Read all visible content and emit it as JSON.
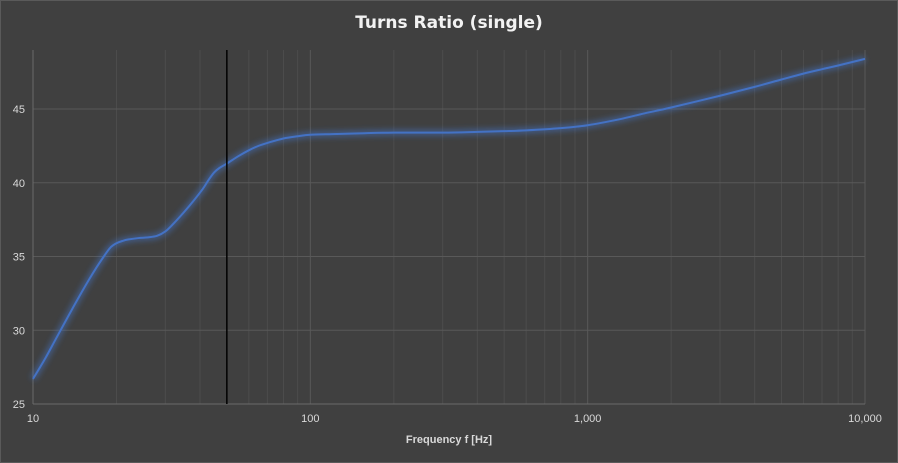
{
  "chart_data": {
    "type": "line",
    "title": "Turns Ratio (single)",
    "xlabel": "Frequency  f [Hz]",
    "ylabel": "",
    "x_scale": "log",
    "xlim": [
      10,
      10000
    ],
    "ylim": [
      25,
      49
    ],
    "x_ticks": [
      10,
      100,
      1000,
      10000
    ],
    "x_tick_labels": [
      "10",
      "100",
      "1,000",
      "10,000"
    ],
    "y_ticks": [
      25,
      30,
      35,
      40,
      45
    ],
    "y_tick_labels": [
      "25",
      "30",
      "35",
      "40",
      "45"
    ],
    "grid": true,
    "minor_grid": true,
    "marker_line_x": 50,
    "series": [
      {
        "name": "",
        "color": "#4472c4",
        "x": [
          10,
          11,
          12,
          13,
          14,
          15,
          16,
          17,
          18,
          19,
          20,
          21,
          22,
          24,
          26,
          28,
          30,
          32,
          35,
          38,
          41,
          43,
          45,
          47,
          50,
          55,
          60,
          65,
          70,
          80,
          90,
          100,
          120,
          150,
          200,
          300,
          400,
          500,
          600,
          800,
          1000,
          1300,
          1600,
          2000,
          3000,
          4000,
          5000,
          6000,
          7000,
          8000,
          10000
        ],
        "y": [
          26.7,
          28.0,
          29.3,
          30.5,
          31.6,
          32.6,
          33.5,
          34.3,
          35.0,
          35.6,
          35.9,
          36.05,
          36.15,
          36.25,
          36.3,
          36.4,
          36.7,
          37.2,
          38.0,
          38.8,
          39.6,
          40.2,
          40.7,
          41.0,
          41.3,
          41.8,
          42.2,
          42.5,
          42.7,
          43.0,
          43.15,
          43.25,
          43.3,
          43.35,
          43.4,
          43.4,
          43.45,
          43.5,
          43.55,
          43.7,
          43.9,
          44.3,
          44.7,
          45.1,
          45.9,
          46.5,
          47.0,
          47.4,
          47.7,
          47.95,
          48.4
        ]
      }
    ]
  }
}
